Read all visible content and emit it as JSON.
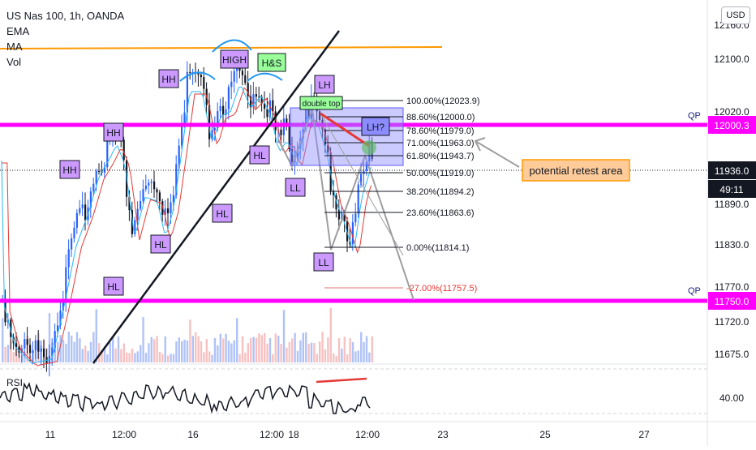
{
  "legend": {
    "title": "US Nas 100, 1h, OANDA",
    "ema": "EMA",
    "ma": "MA",
    "vol": "Vol"
  },
  "currency_button": "USD",
  "price_axis": {
    "ticks": [
      "12160.0",
      "12100.0",
      "12020.0",
      "11890.0",
      "11830.0",
      "11770.0",
      "11720.0",
      "11675.0"
    ],
    "last_price": "11936.0",
    "countdown": "49:11",
    "qp_high": {
      "label": "QP",
      "value": "12000.3"
    },
    "qp_low": {
      "label": "QP",
      "value": "11750.0"
    }
  },
  "rsi": {
    "label": "RSI",
    "value_tick": "40.00"
  },
  "time_axis": {
    "ticks": [
      "11",
      "12:00",
      "16",
      "12:00",
      "18",
      "12:00",
      "23",
      "25",
      "27"
    ]
  },
  "swing_labels": [
    "HH",
    "HH",
    "HH",
    "HIGH",
    "H&S",
    "LH",
    "HL",
    "HL",
    "HL",
    "HL",
    "LL",
    "LL",
    "LH?"
  ],
  "annotations": {
    "double_top": "double top",
    "retest": "potential retest area"
  },
  "fibonacci": [
    {
      "level": "100.00%",
      "price": "(12023.9)"
    },
    {
      "level": "88.60%",
      "price": "(12000.0)"
    },
    {
      "level": "78.60%",
      "price": "(11979.0)"
    },
    {
      "level": "71.00%",
      "price": "(11963.0)"
    },
    {
      "level": "61.80%",
      "price": "(11943.7)"
    },
    {
      "level": "50.00%",
      "price": "(11919.0)"
    },
    {
      "level": "38.20%",
      "price": "(11894.2)"
    },
    {
      "level": "23.60%",
      "price": "(11863.6)"
    },
    {
      "level": "0.00%",
      "price": "(11814.1)"
    },
    {
      "level": "-27.00%",
      "price": "(11757.5)"
    }
  ],
  "colors": {
    "magenta": "#ff00ff",
    "orange_line": "#ff9800",
    "label_fill": "#cc99ff",
    "label_green": "#99ff99",
    "fib_zone": "#8c8cff",
    "bull": "#2962ff",
    "bear": "#131722",
    "retest_fill": "#ffcc99",
    "retest_border": "#ff9800"
  }
}
